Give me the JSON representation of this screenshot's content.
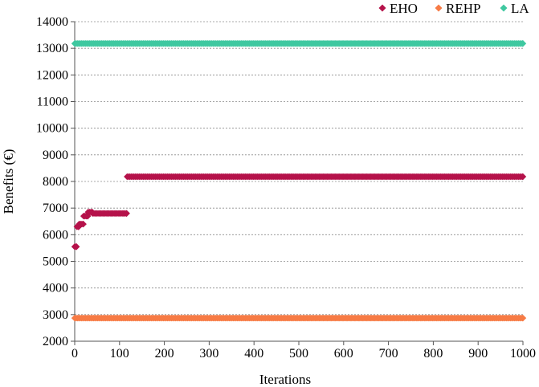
{
  "chart_data": {
    "type": "scatter",
    "xlabel": "Iterations",
    "ylabel": "Benefits (€)",
    "title": "",
    "xlim": [
      0,
      1000
    ],
    "ylim": [
      2000,
      14000
    ],
    "x_ticks": [
      0,
      100,
      200,
      300,
      400,
      500,
      600,
      700,
      800,
      900,
      1000
    ],
    "y_ticks": [
      2000,
      3000,
      4000,
      5000,
      6000,
      7000,
      8000,
      9000,
      10000,
      11000,
      12000,
      13000,
      14000
    ],
    "x_tick_labels": [
      "0",
      "100",
      "200",
      "300",
      "400",
      "500",
      "600",
      "700",
      "800",
      "900",
      "1000"
    ],
    "y_tick_labels": [
      "2000",
      "3000",
      "4000",
      "5000",
      "6000",
      "7000",
      "8000",
      "9000",
      "10000",
      "11000",
      "12000",
      "13000",
      "14000"
    ],
    "grid": "horizontal-dashed",
    "legend_position": "top-right",
    "marker": "diamond",
    "series": [
      {
        "name": "EHO",
        "color": "#b5124a",
        "segments": [
          {
            "x_start": 0,
            "x_end": 4,
            "y": 5550
          },
          {
            "x_start": 5,
            "x_end": 9,
            "y": 6300
          },
          {
            "x_start": 10,
            "x_end": 19,
            "y": 6400
          },
          {
            "x_start": 20,
            "x_end": 29,
            "y": 6700
          },
          {
            "x_start": 30,
            "x_end": 39,
            "y": 6850
          },
          {
            "x_start": 40,
            "x_end": 116,
            "y": 6800
          },
          {
            "x_start": 117,
            "x_end": 1000,
            "y": 8180
          }
        ]
      },
      {
        "name": "REHP",
        "color": "#f77b45",
        "segments": [
          {
            "x_start": 0,
            "x_end": 1000,
            "y": 2870
          }
        ]
      },
      {
        "name": "LA",
        "color": "#3fc8a0",
        "segments": [
          {
            "x_start": 0,
            "x_end": 1000,
            "y": 13180
          }
        ]
      }
    ]
  }
}
